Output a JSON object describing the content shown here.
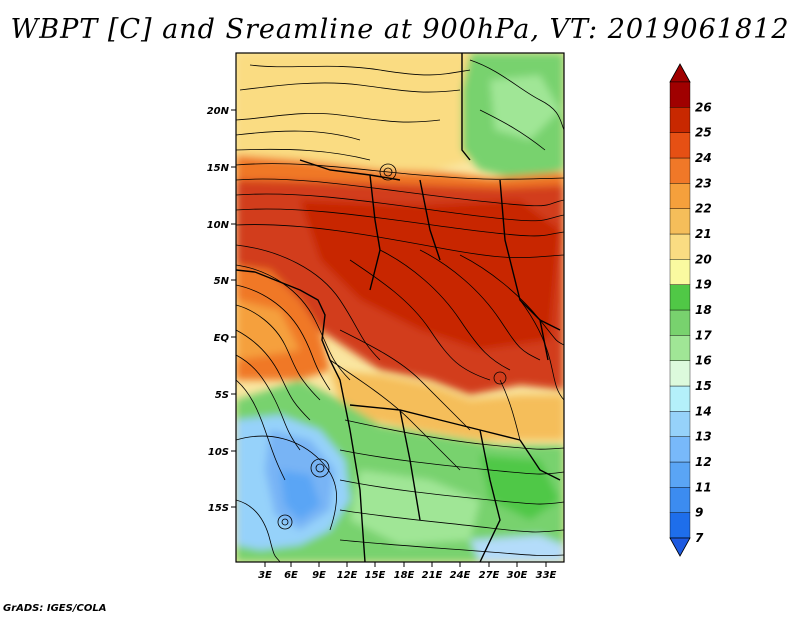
{
  "title": "WBPT [C] and Sreamline at 900hPa, VT: 2019061812",
  "credit": "GrADS: IGES/COLA",
  "map": {
    "variable": "Wet-bulb potential temperature (WBPT) with streamlines",
    "level": "900hPa",
    "valid_time": "2019061812",
    "lat_labels": [
      "20N",
      "15N",
      "10N",
      "5N",
      "EQ",
      "5S",
      "10S",
      "15S"
    ],
    "lat_values": [
      20,
      15,
      10,
      5,
      0,
      -5,
      -10,
      -15
    ],
    "lon_labels": [
      "3E",
      "6E",
      "9E",
      "12E",
      "15E",
      "18E",
      "21E",
      "24E",
      "27E",
      "30E",
      "33E"
    ],
    "lon_values": [
      3,
      6,
      9,
      12,
      15,
      18,
      21,
      24,
      27,
      30,
      33
    ],
    "extent": {
      "lon_min": 0,
      "lon_max": 35,
      "lat_min": -20,
      "lat_max": 24
    }
  },
  "colorbar": {
    "labels": [
      "7",
      "9",
      "11",
      "12",
      "13",
      "14",
      "15",
      "16",
      "17",
      "18",
      "19",
      "20",
      "21",
      "22",
      "23",
      "24",
      "25",
      "26"
    ],
    "colors": [
      "#1e6eeb",
      "#3c8cf0",
      "#5aa5f5",
      "#78b9fa",
      "#96d2fa",
      "#b4f0fa",
      "#dcfadc",
      "#a0e696",
      "#78d26e",
      "#50c846",
      "#fafaa0",
      "#fadc82",
      "#f5be5a",
      "#f5a03c",
      "#f07828",
      "#e65014",
      "#c82800",
      "#a00000"
    ],
    "arrow_bottom_color": "#1e5ae0",
    "arrow_top_color": "#a00000"
  },
  "colors": {
    "red": "#d23c1e",
    "orange": "#f07828",
    "light_orange": "#f5be5a",
    "yellow": "#fae6a0",
    "green": "#78d26e",
    "light_green": "#a0e696",
    "blue": "#78b4f5",
    "light_blue": "#b4dcfa"
  }
}
